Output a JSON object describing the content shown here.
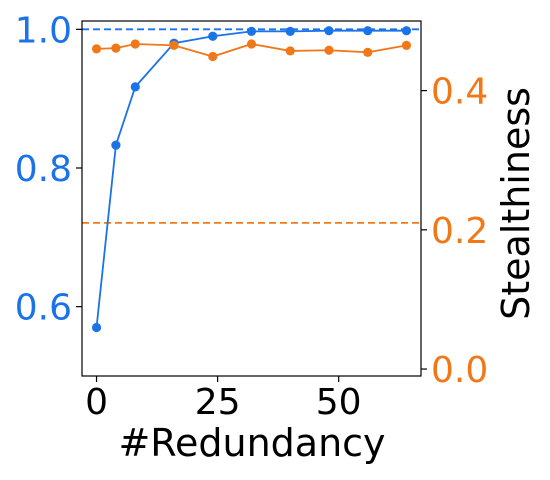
{
  "chart_data": {
    "type": "line",
    "xlabel": "#Redundancy",
    "ylabel_left": "",
    "ylabel_right": "Stealthiness",
    "xlim": [
      -3,
      67
    ],
    "ylim_left": [
      0.5,
      1.012
    ],
    "ylim_right": [
      -0.01,
      0.5
    ],
    "x_ticks": [
      0,
      25,
      50
    ],
    "y_ticks_left": [
      0.6,
      0.8,
      1.0
    ],
    "y_ticks_right": [
      0.0,
      0.2,
      0.4
    ],
    "x_tick_labels": [
      "0",
      "25",
      "50"
    ],
    "y_tick_labels_left": [
      "0.6",
      "0.8",
      "1.0"
    ],
    "y_tick_labels_right": [
      "0.0",
      "0.2",
      "0.4"
    ],
    "grid": false,
    "colors": {
      "left_axis": "#1a73e8",
      "right_axis": "#f07818"
    },
    "series": [
      {
        "axis": "left",
        "color": "#1a73e8",
        "x": [
          0,
          4,
          8,
          16,
          24,
          32,
          40,
          48,
          56,
          64
        ],
        "y": [
          0.57,
          0.833,
          0.917,
          0.98,
          0.99,
          0.997,
          0.997,
          0.998,
          0.998,
          0.998
        ]
      },
      {
        "axis": "right",
        "color": "#f07818",
        "x": [
          0,
          4,
          8,
          16,
          24,
          32,
          40,
          48,
          56,
          64
        ],
        "y": [
          0.46,
          0.461,
          0.467,
          0.465,
          0.449,
          0.467,
          0.457,
          0.458,
          0.455,
          0.465
        ]
      }
    ],
    "reference_lines": [
      {
        "axis": "left",
        "y": 1.0,
        "color": "#1a73e8",
        "style": "dashed"
      },
      {
        "axis": "right",
        "y": 0.21,
        "color": "#f07818",
        "style": "dashed"
      }
    ]
  }
}
